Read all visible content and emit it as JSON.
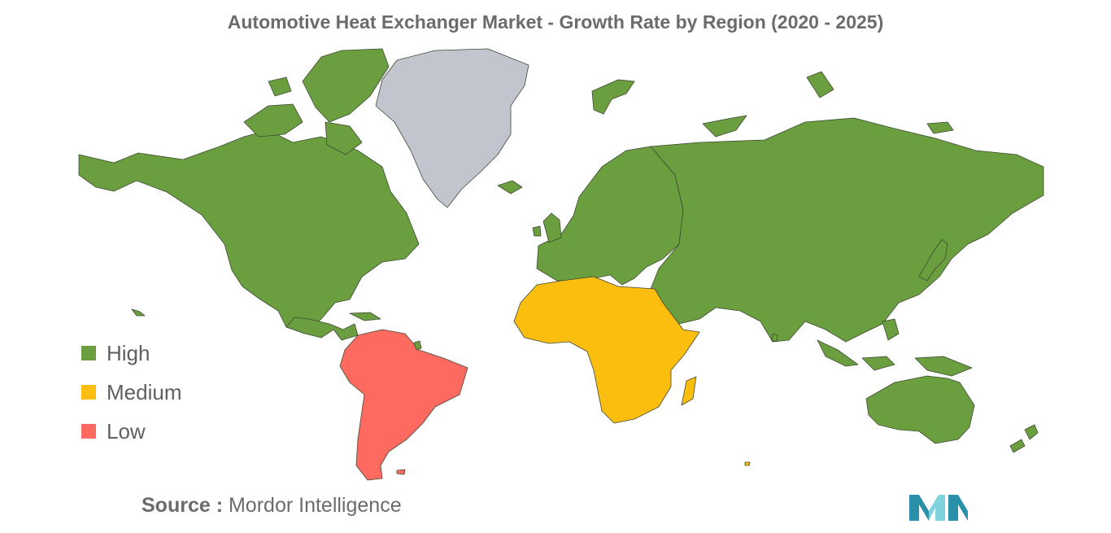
{
  "title": "Automotive Heat Exchanger Market - Growth Rate by Region (2020 - 2025)",
  "colors": {
    "high": "#6b9e3f",
    "medium": "#fbbd0e",
    "low": "#fe6a5f",
    "no_data": "#c2c5cd",
    "border": "#3d4a35",
    "logo_dark": "#2a8fa8",
    "logo_light": "#7fd3df"
  },
  "legend": [
    {
      "label": "High",
      "level": "high"
    },
    {
      "label": "Medium",
      "level": "medium"
    },
    {
      "label": "Low",
      "level": "low"
    }
  ],
  "regions": [
    {
      "name": "North America",
      "level": "high"
    },
    {
      "name": "South America",
      "level": "low"
    },
    {
      "name": "Europe",
      "level": "high"
    },
    {
      "name": "Asia-Pacific",
      "level": "high"
    },
    {
      "name": "Middle East and Africa",
      "level": "medium"
    }
  ],
  "source": {
    "key": "Source :",
    "value": "Mordor Intelligence"
  },
  "logo_icon": "mordor-intelligence-logo"
}
